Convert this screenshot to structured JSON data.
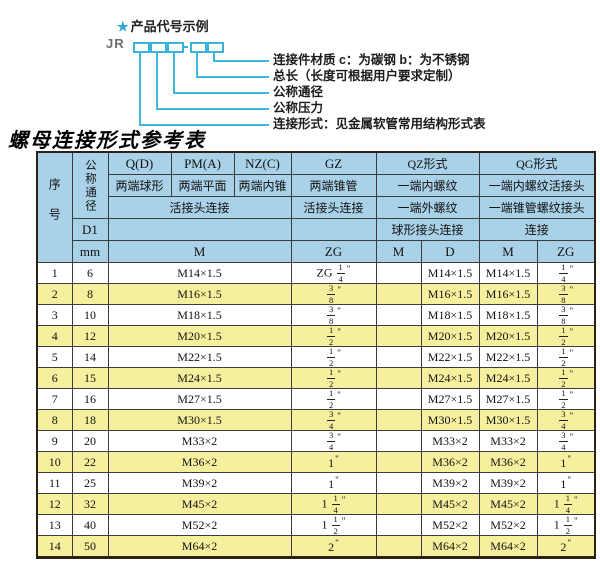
{
  "diagram": {
    "star": "★",
    "title": "产品代号示例",
    "code_prefix": "JR",
    "labels": [
      "连接件材质  c：为碳钢  b：为不锈钢",
      "总长（长度可根据用户要求定制）",
      "公称通径",
      "公称压力",
      "连接形式：见金属软管常用结构形式表"
    ]
  },
  "table": {
    "title": "螺母连接形式参考表",
    "header": {
      "serial": "序号",
      "dn": "公称通径",
      "col_q": "Q(D)",
      "col_pm": "PM(A)",
      "col_nz": "NZ(C)",
      "col_gz": "GZ",
      "col_qz": "QZ形式",
      "col_qg": "QG形式",
      "sub_q": "两端球形",
      "sub_pm": "两端平面",
      "sub_nz": "两端内锥",
      "sub_gz": "两端锥管",
      "sub_qz": "一端内螺纹",
      "sub_qg": "一端内螺纹活接头",
      "conn_qpmnz": "活接头连接",
      "conn_gz": "活接头连接",
      "sub2_qz": "一端外螺纹",
      "sub2_qg": "一端锥管螺纹接头",
      "d1": "D1",
      "conn2_qz": "球形接头连接",
      "conn2_qg": "连接",
      "mm": "mm",
      "m_main": "M",
      "zg_gz": "ZG",
      "m_qz": "M",
      "d_qz": "D",
      "m_qg": "M",
      "zg_qg": "ZG"
    },
    "rows": [
      {
        "no": "1",
        "dn": "6",
        "m": "M14×1.5",
        "gz_zg": "ZG 1/4\"",
        "qz_m": "",
        "qz_d": "M14×1.5",
        "qg_m": "M14×1.5",
        "qg_zg": "1/4\""
      },
      {
        "no": "2",
        "dn": "8",
        "m": "M16×1.5",
        "gz_zg": "3/8\"",
        "qz_m": "",
        "qz_d": "M16×1.5",
        "qg_m": "M16×1.5",
        "qg_zg": "3/8\""
      },
      {
        "no": "3",
        "dn": "10",
        "m": "M18×1.5",
        "gz_zg": "3/8\"",
        "qz_m": "",
        "qz_d": "M18×1.5",
        "qg_m": "M18×1.5",
        "qg_zg": "3/8\""
      },
      {
        "no": "4",
        "dn": "12",
        "m": "M20×1.5",
        "gz_zg": "1/2\"",
        "qz_m": "",
        "qz_d": "M20×1.5",
        "qg_m": "M20×1.5",
        "qg_zg": "1/2\""
      },
      {
        "no": "5",
        "dn": "14",
        "m": "M22×1.5",
        "gz_zg": "1/2\"",
        "qz_m": "",
        "qz_d": "M22×1.5",
        "qg_m": "M22×1.5",
        "qg_zg": "1/2\""
      },
      {
        "no": "6",
        "dn": "15",
        "m": "M24×1.5",
        "gz_zg": "1/2\"",
        "qz_m": "",
        "qz_d": "M24×1.5",
        "qg_m": "M24×1.5",
        "qg_zg": "1/2\""
      },
      {
        "no": "7",
        "dn": "16",
        "m": "M27×1.5",
        "gz_zg": "1/2\"",
        "qz_m": "",
        "qz_d": "M27×1.5",
        "qg_m": "M27×1.5",
        "qg_zg": "1/2\""
      },
      {
        "no": "8",
        "dn": "18",
        "m": "M30×1.5",
        "gz_zg": "3/4\"",
        "qz_m": "",
        "qz_d": "M30×1.5",
        "qg_m": "M30×1.5",
        "qg_zg": "3/4\""
      },
      {
        "no": "9",
        "dn": "20",
        "m": "M33×2",
        "gz_zg": "3/4\"",
        "qz_m": "",
        "qz_d": "M33×2",
        "qg_m": "M33×2",
        "qg_zg": "3/4\""
      },
      {
        "no": "10",
        "dn": "22",
        "m": "M36×2",
        "gz_zg": "1\"",
        "qz_m": "",
        "qz_d": "M36×2",
        "qg_m": "M36×2",
        "qg_zg": "1\""
      },
      {
        "no": "11",
        "dn": "25",
        "m": "M39×2",
        "gz_zg": "1\"",
        "qz_m": "",
        "qz_d": "M39×2",
        "qg_m": "M39×2",
        "qg_zg": "1\""
      },
      {
        "no": "12",
        "dn": "32",
        "m": "M45×2",
        "gz_zg": "1 1/4\"",
        "qz_m": "",
        "qz_d": "M45×2",
        "qg_m": "M45×2",
        "qg_zg": "1 1/4\""
      },
      {
        "no": "13",
        "dn": "40",
        "m": "M52×2",
        "gz_zg": "1 1/2\"",
        "qz_m": "",
        "qz_d": "M52×2",
        "qg_m": "M52×2",
        "qg_zg": "1 1/2\""
      },
      {
        "no": "14",
        "dn": "50",
        "m": "M64×2",
        "gz_zg": "2\"",
        "qz_m": "",
        "qz_d": "M64×2",
        "qg_m": "M64×2",
        "qg_zg": "2\""
      }
    ]
  }
}
